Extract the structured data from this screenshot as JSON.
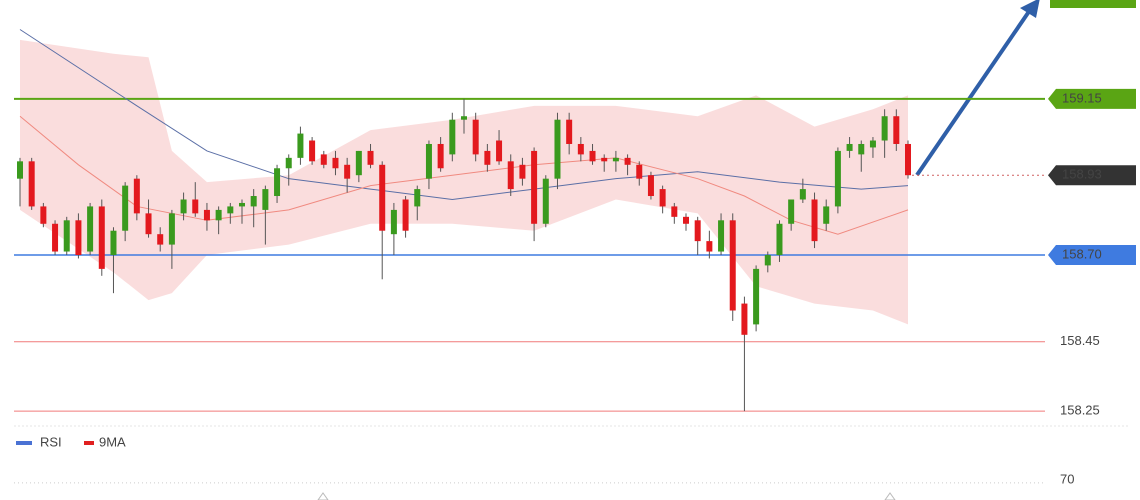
{
  "chart_data": {
    "type": "candlestick",
    "ylim": [
      158.21,
      159.435
    ],
    "candles": {
      "open": [
        158.92,
        158.97,
        158.84,
        158.79,
        158.71,
        158.8,
        158.71,
        158.84,
        158.7,
        158.77,
        158.92,
        158.82,
        158.76,
        158.73,
        158.82,
        158.86,
        158.83,
        158.8,
        158.82,
        158.84,
        158.84,
        158.83,
        158.87,
        158.95,
        158.98,
        159.03,
        158.99,
        158.98,
        158.96,
        158.93,
        159.0,
        158.96,
        158.76,
        158.86,
        158.84,
        158.92,
        159.02,
        158.99,
        159.09,
        159.09,
        159.0,
        159.03,
        158.97,
        158.96,
        159.0,
        158.79,
        158.92,
        159.09,
        159.02,
        159.0,
        158.98,
        158.97,
        158.98,
        158.96,
        158.93,
        158.89,
        158.84,
        158.81,
        158.8,
        158.74,
        158.71,
        158.8,
        158.56,
        158.5,
        158.67,
        158.7,
        158.79,
        158.86,
        158.86,
        158.79,
        158.84,
        159.0,
        158.99,
        159.01,
        159.03,
        159.1,
        159.02
      ],
      "high": [
        158.98,
        158.98,
        158.85,
        158.8,
        158.81,
        158.82,
        158.85,
        158.86,
        158.78,
        158.91,
        158.93,
        158.86,
        158.78,
        158.83,
        158.88,
        158.91,
        158.85,
        158.84,
        158.85,
        158.86,
        158.89,
        158.9,
        158.96,
        158.99,
        159.07,
        159.04,
        159.0,
        159.0,
        158.98,
        159.0,
        159.02,
        158.97,
        158.85,
        158.87,
        158.9,
        159.03,
        159.04,
        159.11,
        159.15,
        159.11,
        159.02,
        159.06,
        158.99,
        158.98,
        159.01,
        158.93,
        159.11,
        159.11,
        159.04,
        159.02,
        158.99,
        159.0,
        158.99,
        158.97,
        158.94,
        158.9,
        158.85,
        158.82,
        158.81,
        158.77,
        158.82,
        158.82,
        158.58,
        158.67,
        158.71,
        158.8,
        158.86,
        158.92,
        158.88,
        158.86,
        159.01,
        159.04,
        159.03,
        159.04,
        159.12,
        159.12,
        159.03
      ],
      "low": [
        158.84,
        158.83,
        158.78,
        158.7,
        158.7,
        158.69,
        158.7,
        158.64,
        158.59,
        158.74,
        158.8,
        158.75,
        158.71,
        158.66,
        158.8,
        158.81,
        158.77,
        158.76,
        158.79,
        158.79,
        158.78,
        158.73,
        158.85,
        158.9,
        158.96,
        158.96,
        158.95,
        158.93,
        158.88,
        158.91,
        158.95,
        158.63,
        158.7,
        158.75,
        158.8,
        158.89,
        158.94,
        158.97,
        159.05,
        158.97,
        158.94,
        158.96,
        158.87,
        158.9,
        158.74,
        158.78,
        158.89,
        158.99,
        158.97,
        158.96,
        158.94,
        158.94,
        158.93,
        158.9,
        158.86,
        158.82,
        158.79,
        158.77,
        158.7,
        158.69,
        158.7,
        158.51,
        158.25,
        158.48,
        158.65,
        158.68,
        158.77,
        158.85,
        158.72,
        158.77,
        158.82,
        158.98,
        158.94,
        158.98,
        158.98,
        159.0,
        158.92
      ],
      "close": [
        158.97,
        158.84,
        158.79,
        158.71,
        158.8,
        158.7,
        158.84,
        158.66,
        158.77,
        158.9,
        158.82,
        158.76,
        158.73,
        158.82,
        158.86,
        158.82,
        158.8,
        158.83,
        158.84,
        158.85,
        158.87,
        158.89,
        158.95,
        158.98,
        159.05,
        158.97,
        158.96,
        158.95,
        158.92,
        159.0,
        158.96,
        158.77,
        158.83,
        158.77,
        158.89,
        159.02,
        158.95,
        159.09,
        159.1,
        158.99,
        158.96,
        158.97,
        158.89,
        158.92,
        158.79,
        158.92,
        159.09,
        159.02,
        158.99,
        158.97,
        158.97,
        158.98,
        158.96,
        158.92,
        158.87,
        158.84,
        158.81,
        158.79,
        158.74,
        158.71,
        158.8,
        158.54,
        158.47,
        158.66,
        158.7,
        158.79,
        158.86,
        158.89,
        158.74,
        158.84,
        159.0,
        159.02,
        159.02,
        159.03,
        159.1,
        159.02,
        158.93
      ]
    },
    "up_color": "#3a9a1e",
    "down_color": "#e3191e",
    "band": {
      "color": "#f4b4b4",
      "x": [
        0,
        8,
        11,
        13,
        16,
        23,
        30,
        37,
        44,
        51,
        58,
        63,
        68,
        73,
        76
      ],
      "upper": [
        159.32,
        159.28,
        159.27,
        159.0,
        158.91,
        158.93,
        159.06,
        159.09,
        159.13,
        159.13,
        159.1,
        159.16,
        159.07,
        159.12,
        159.16
      ],
      "lower": [
        158.83,
        158.65,
        158.57,
        158.59,
        158.7,
        158.73,
        158.79,
        158.79,
        158.77,
        158.86,
        158.82,
        158.61,
        158.56,
        158.54,
        158.5
      ]
    },
    "lines": [
      {
        "color": "#5b6fa6",
        "x": [
          0,
          10,
          16,
          23,
          30,
          37,
          44,
          51,
          58,
          65,
          72,
          76
        ],
        "values": [
          159.35,
          159.13,
          159.0,
          158.92,
          158.89,
          158.86,
          158.89,
          158.92,
          158.94,
          158.91,
          158.89,
          158.9
        ]
      },
      {
        "color": "#f08a80",
        "x": [
          0,
          5,
          10,
          16,
          23,
          30,
          37,
          44,
          51,
          58,
          62,
          66,
          70,
          76
        ],
        "values": [
          159.1,
          158.96,
          158.84,
          158.8,
          158.83,
          158.9,
          158.93,
          158.96,
          158.98,
          158.92,
          158.87,
          158.8,
          158.76,
          158.83
        ]
      }
    ],
    "levels": [
      {
        "value": 159.15,
        "label": "159.15",
        "color": "#5aa514",
        "style": "box"
      },
      {
        "value": 158.93,
        "label": "158.93",
        "color": "#333333",
        "style": "current"
      },
      {
        "value": 158.7,
        "label": "158.70",
        "color": "#3f7be0",
        "style": "box"
      },
      {
        "value": 158.45,
        "label": "158.45",
        "color": "#f07a7a",
        "style": "text"
      },
      {
        "value": 158.25,
        "label": "158.25",
        "color": "#f07a7a",
        "style": "text"
      }
    ],
    "rsi_pane": {
      "legend": [
        {
          "name": "RSI",
          "color": "#4a72d4"
        },
        {
          "name": "9MA",
          "color": "#e02020"
        }
      ],
      "ylim": [
        0,
        100
      ],
      "yticks": [
        70
      ]
    }
  }
}
